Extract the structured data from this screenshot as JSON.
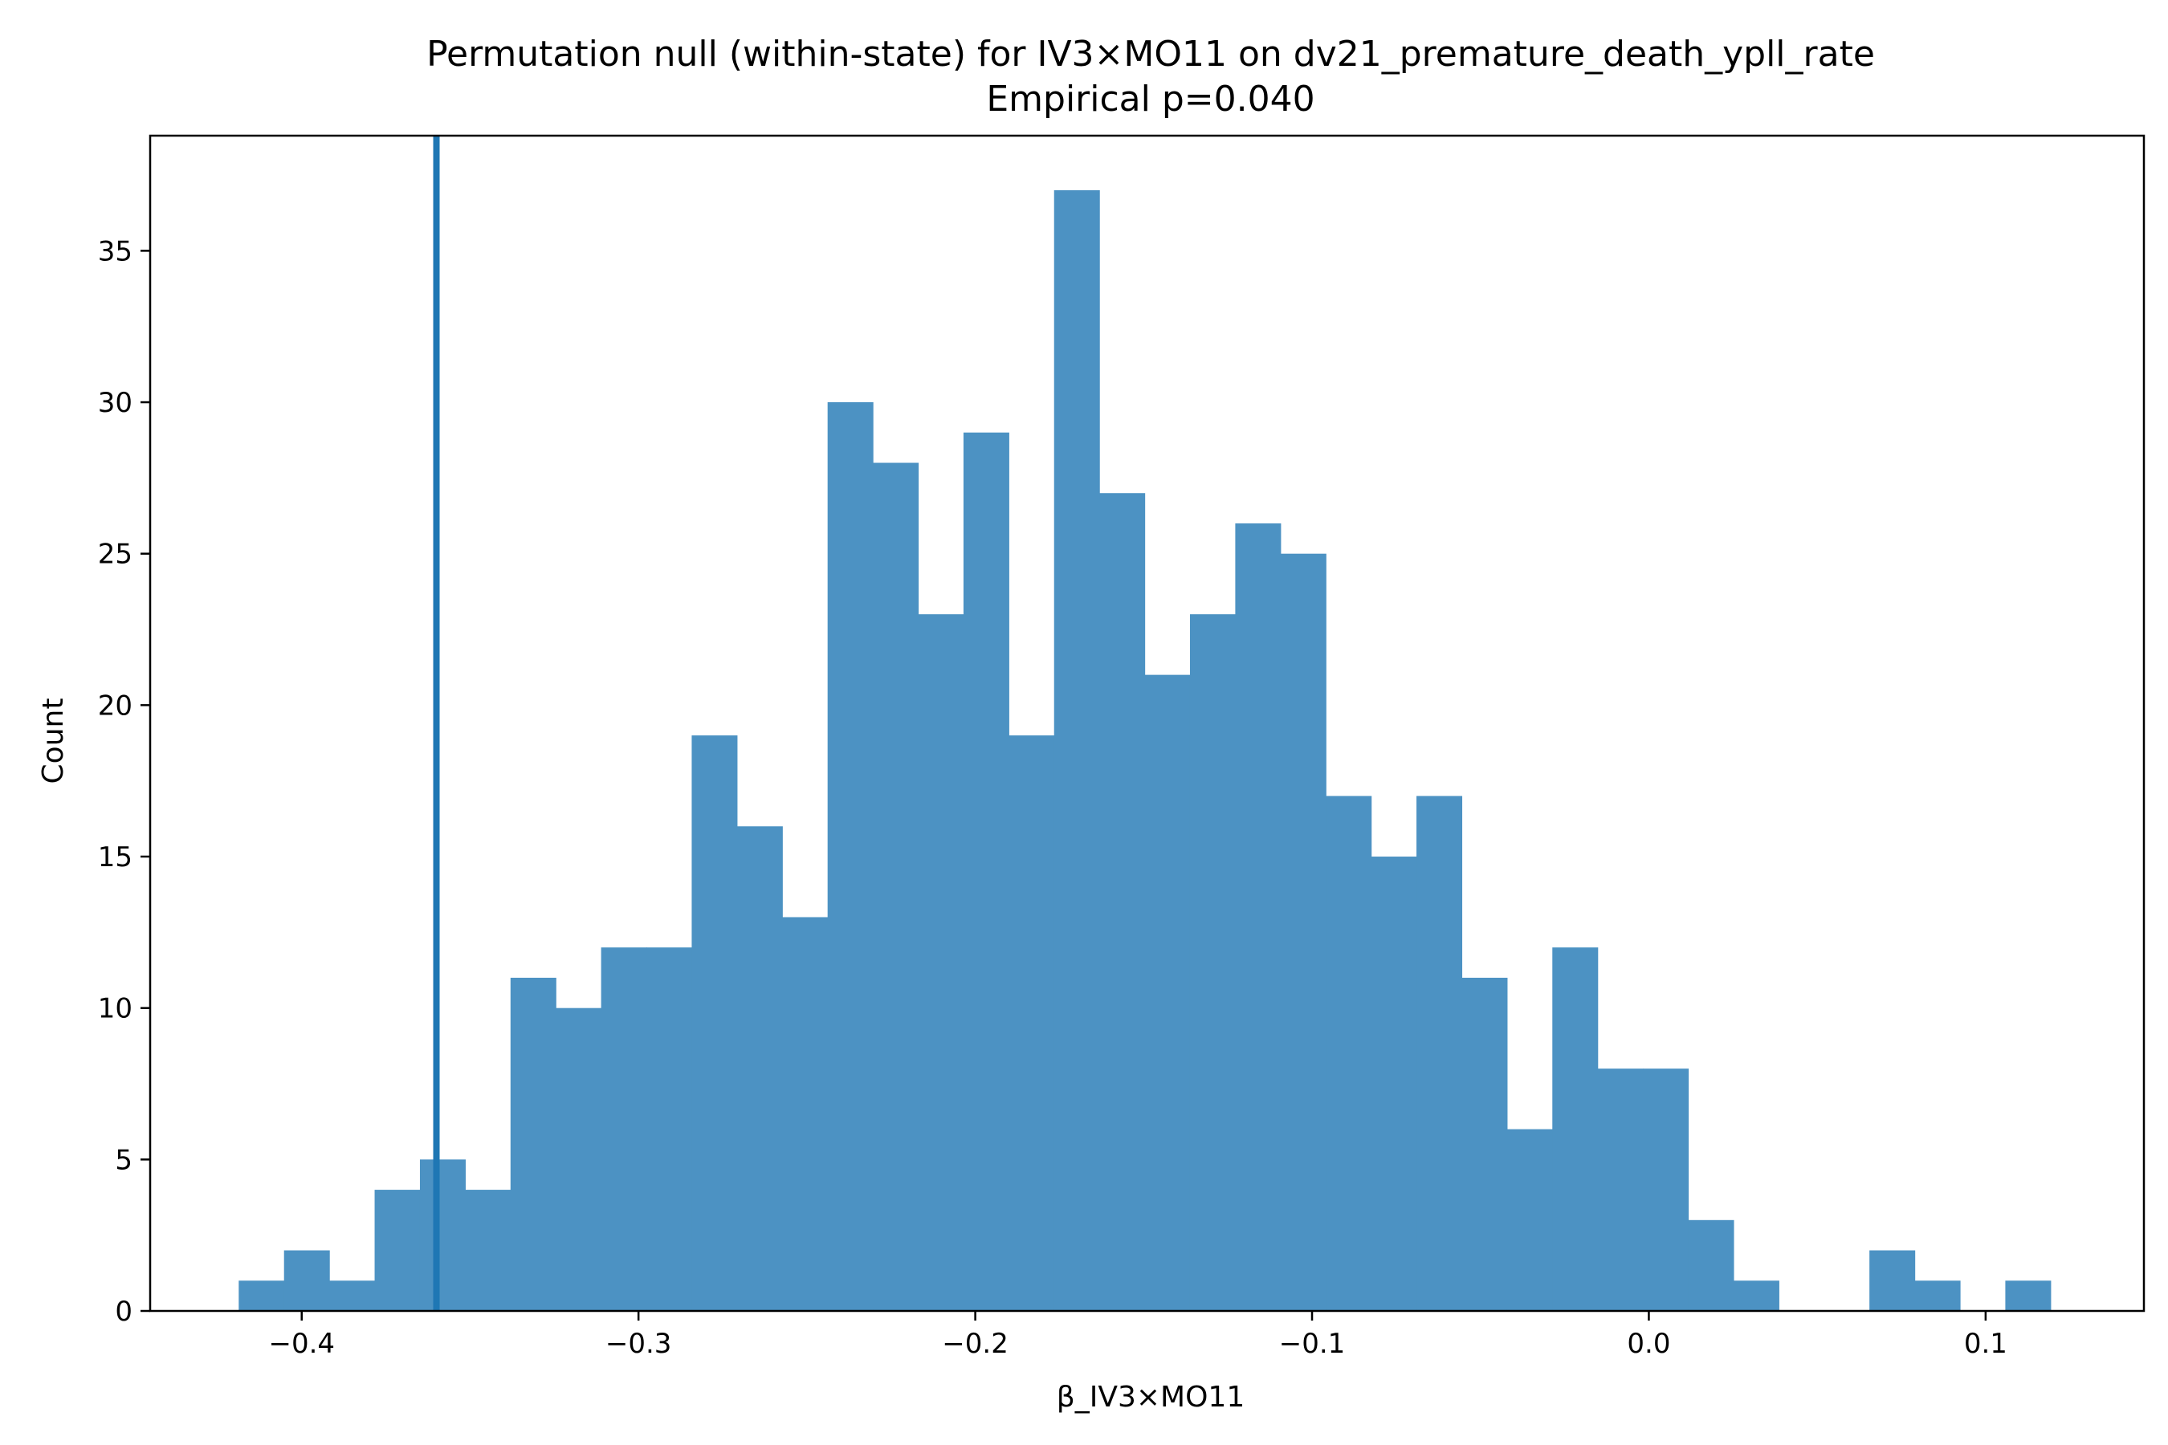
{
  "chart_data": {
    "type": "histogram",
    "title": "Permutation null (within-state) for IV3×MO11 on dv21_premature_death_ypll_rate",
    "subtitle": "Empirical p=0.040",
    "xlabel": "β_IV3×MO11",
    "ylabel": "Count",
    "xlim": [
      -0.445,
      0.147
    ],
    "ylim": [
      0,
      38.8
    ],
    "x_ticks": [
      -0.4,
      -0.3,
      -0.2,
      -0.1,
      0.0,
      0.1
    ],
    "x_tick_labels": [
      "−0.4",
      "−0.3",
      "−0.2",
      "−0.1",
      "0.0",
      "0.1"
    ],
    "y_ticks": [
      0,
      5,
      10,
      15,
      20,
      25,
      30,
      35
    ],
    "y_tick_labels": [
      "0",
      "5",
      "10",
      "15",
      "20",
      "25",
      "30",
      "35"
    ],
    "bin_start": -0.4187,
    "bin_width": 0.01345,
    "counts": [
      1,
      2,
      1,
      4,
      5,
      4,
      11,
      10,
      12,
      12,
      19,
      16,
      13,
      30,
      28,
      23,
      29,
      19,
      37,
      27,
      21,
      23,
      26,
      25,
      17,
      15,
      17,
      11,
      6,
      12,
      8,
      8,
      3,
      1,
      0,
      0,
      2,
      1,
      0,
      1
    ],
    "observed_value": -0.36,
    "bar_color": "#4c92c3",
    "line_color": "#1f77b4",
    "grid": false
  }
}
